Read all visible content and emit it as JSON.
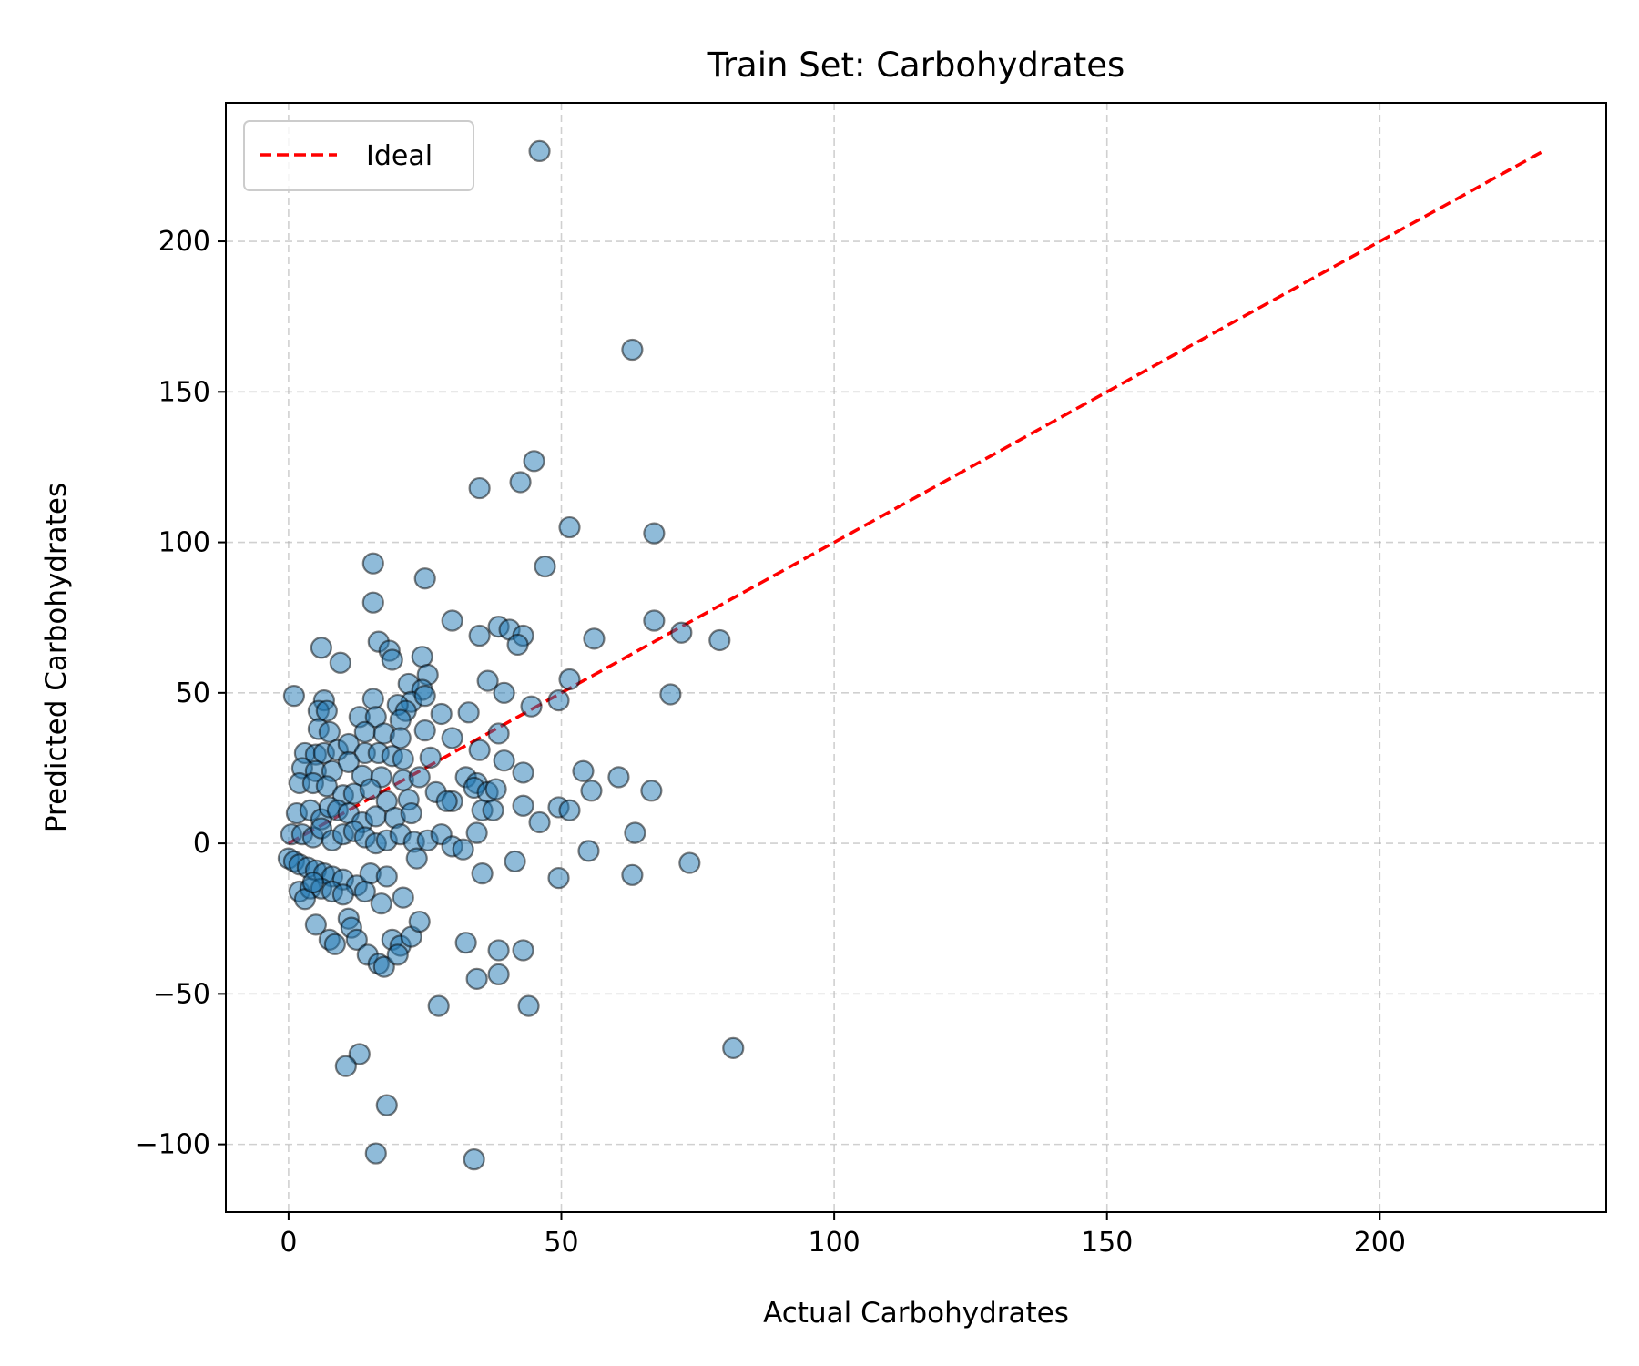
{
  "chart_data": {
    "type": "scatter",
    "title": "Train Set: Carbohydrates",
    "xlabel": "Actual Carbohydrates",
    "ylabel": "Predicted Carbohydrates",
    "xlim": [
      -11.5,
      241.5
    ],
    "ylim": [
      -122.5,
      246
    ],
    "xticks": [
      0,
      50,
      100,
      150,
      200
    ],
    "yticks": [
      -100,
      -50,
      0,
      50,
      100,
      150,
      200
    ],
    "xtick_labels": [
      "0",
      "50",
      "100",
      "150",
      "200"
    ],
    "ytick_labels": [
      "−100",
      "−50",
      "0",
      "50",
      "100",
      "150",
      "200"
    ],
    "grid": true,
    "legend": {
      "placement": "top-left",
      "entries": [
        {
          "label": "Ideal",
          "style": "dashed",
          "color": "#ff0000"
        }
      ]
    },
    "ideal_line": {
      "name": "Ideal",
      "color": "#ff0000",
      "x": [
        0,
        230
      ],
      "y": [
        0,
        230
      ]
    },
    "marker_color": "#1f77b4",
    "marker_edge_color": "#000000",
    "marker_alpha": 0.5,
    "points": [
      [
        46,
        230
      ],
      [
        63,
        164
      ],
      [
        45,
        127
      ],
      [
        42.5,
        120
      ],
      [
        35,
        118
      ],
      [
        51.5,
        105
      ],
      [
        67,
        103
      ],
      [
        15.5,
        93
      ],
      [
        47,
        92
      ],
      [
        25,
        88
      ],
      [
        15.5,
        80
      ],
      [
        67,
        74
      ],
      [
        72,
        70
      ],
      [
        79,
        67.5
      ],
      [
        56,
        68
      ],
      [
        30,
        74
      ],
      [
        38.5,
        72
      ],
      [
        40.5,
        71
      ],
      [
        43,
        69
      ],
      [
        35,
        69
      ],
      [
        42,
        66
      ],
      [
        16.5,
        67
      ],
      [
        18.5,
        64
      ],
      [
        6,
        65
      ],
      [
        9.5,
        60
      ],
      [
        19,
        61
      ],
      [
        24.5,
        62
      ],
      [
        25.5,
        56
      ],
      [
        22,
        53
      ],
      [
        24.5,
        51
      ],
      [
        22.5,
        47
      ],
      [
        25,
        49
      ],
      [
        36.5,
        54
      ],
      [
        39.5,
        50
      ],
      [
        51.5,
        54.5
      ],
      [
        49.5,
        47.5
      ],
      [
        44.5,
        45.5
      ],
      [
        70,
        49.5
      ],
      [
        1,
        49
      ],
      [
        6.5,
        47.5
      ],
      [
        15.5,
        48
      ],
      [
        20,
        46
      ],
      [
        21.5,
        44
      ],
      [
        20.5,
        41
      ],
      [
        13,
        42
      ],
      [
        16,
        42
      ],
      [
        28,
        43
      ],
      [
        33,
        43.5
      ],
      [
        5.5,
        44
      ],
      [
        7,
        44
      ],
      [
        5.5,
        38
      ],
      [
        7.5,
        37
      ],
      [
        14,
        37
      ],
      [
        17.5,
        36.5
      ],
      [
        20.5,
        35
      ],
      [
        25,
        37.5
      ],
      [
        30,
        35
      ],
      [
        38.5,
        36.5
      ],
      [
        3,
        30
      ],
      [
        5,
        29.5
      ],
      [
        6.5,
        30
      ],
      [
        9,
        31
      ],
      [
        11,
        33
      ],
      [
        14,
        30
      ],
      [
        16.5,
        30
      ],
      [
        19,
        29
      ],
      [
        21,
        28
      ],
      [
        26,
        28.5
      ],
      [
        35,
        31
      ],
      [
        39.5,
        27.5
      ],
      [
        2.5,
        25
      ],
      [
        5,
        24
      ],
      [
        8,
        24
      ],
      [
        11,
        27
      ],
      [
        13.5,
        22.5
      ],
      [
        17,
        22
      ],
      [
        21,
        21
      ],
      [
        24,
        22
      ],
      [
        32.5,
        22
      ],
      [
        34.5,
        20
      ],
      [
        43,
        23.5
      ],
      [
        54,
        24
      ],
      [
        60.5,
        22
      ],
      [
        66.5,
        17.5
      ],
      [
        55.5,
        17.5
      ],
      [
        2,
        20
      ],
      [
        4.5,
        20
      ],
      [
        7,
        19
      ],
      [
        10,
        16
      ],
      [
        12,
        16.5
      ],
      [
        15,
        18
      ],
      [
        18,
        14
      ],
      [
        22,
        14.5
      ],
      [
        27,
        17
      ],
      [
        30,
        14
      ],
      [
        34,
        18.5
      ],
      [
        36.5,
        17
      ],
      [
        38,
        18
      ],
      [
        1.5,
        10
      ],
      [
        4,
        11
      ],
      [
        6,
        8
      ],
      [
        7.5,
        12
      ],
      [
        9,
        11
      ],
      [
        11,
        10
      ],
      [
        13.5,
        7
      ],
      [
        16,
        9
      ],
      [
        19.5,
        8.5
      ],
      [
        22.5,
        10
      ],
      [
        29,
        14
      ],
      [
        35.5,
        11
      ],
      [
        37.5,
        11
      ],
      [
        43,
        12.5
      ],
      [
        49.5,
        12
      ],
      [
        51.5,
        11
      ],
      [
        0.5,
        3
      ],
      [
        2.5,
        3
      ],
      [
        4.5,
        2
      ],
      [
        6,
        5
      ],
      [
        8,
        1
      ],
      [
        10,
        3
      ],
      [
        12,
        4
      ],
      [
        14,
        2
      ],
      [
        16,
        0
      ],
      [
        18,
        1
      ],
      [
        20.5,
        3
      ],
      [
        23,
        0.5
      ],
      [
        25.5,
        1
      ],
      [
        28,
        3
      ],
      [
        30,
        -1
      ],
      [
        32,
        -2
      ],
      [
        34.5,
        3.5
      ],
      [
        46,
        7
      ],
      [
        55,
        -2.5
      ],
      [
        63.5,
        3.5
      ],
      [
        0,
        -5
      ],
      [
        1,
        -6
      ],
      [
        2,
        -7
      ],
      [
        3.5,
        -8
      ],
      [
        5,
        -9
      ],
      [
        6.5,
        -10
      ],
      [
        8,
        -11
      ],
      [
        10,
        -12
      ],
      [
        12.5,
        -14
      ],
      [
        15,
        -10
      ],
      [
        18,
        -11
      ],
      [
        23.5,
        -5
      ],
      [
        35.5,
        -10
      ],
      [
        41.5,
        -6
      ],
      [
        49.5,
        -11.5
      ],
      [
        63,
        -10.5
      ],
      [
        73.5,
        -6.5
      ],
      [
        2,
        -16
      ],
      [
        4,
        -15
      ],
      [
        6,
        -15
      ],
      [
        8,
        -16
      ],
      [
        10,
        -17
      ],
      [
        14,
        -16
      ],
      [
        17,
        -20
      ],
      [
        21,
        -18
      ],
      [
        3,
        -18.5
      ],
      [
        4.5,
        -13
      ],
      [
        5,
        -27
      ],
      [
        7.5,
        -32
      ],
      [
        8.5,
        -33.5
      ],
      [
        11,
        -25
      ],
      [
        11.5,
        -28
      ],
      [
        12.5,
        -32
      ],
      [
        14.5,
        -37
      ],
      [
        16.5,
        -40
      ],
      [
        17.5,
        -41
      ],
      [
        19,
        -32
      ],
      [
        20.5,
        -34
      ],
      [
        20,
        -37
      ],
      [
        22.5,
        -31
      ],
      [
        24,
        -26
      ],
      [
        32.5,
        -33
      ],
      [
        38.5,
        -35.5
      ],
      [
        43,
        -35.5
      ],
      [
        34.5,
        -45
      ],
      [
        38.5,
        -43.5
      ],
      [
        27.5,
        -54
      ],
      [
        44,
        -54
      ],
      [
        13,
        -70
      ],
      [
        10.5,
        -74
      ],
      [
        81.5,
        -68
      ],
      [
        18,
        -87
      ],
      [
        16,
        -103
      ],
      [
        34,
        -105
      ]
    ]
  }
}
